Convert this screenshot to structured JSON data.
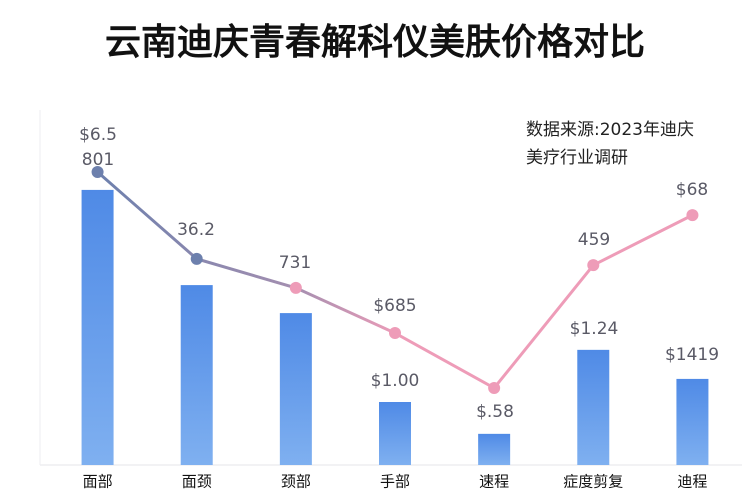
{
  "chart_data": {
    "type": "bar",
    "title": "云南迪庆青春解科仪美肤价格对比",
    "source": [
      "数据来源:2023年迪庆",
      "美疗行业调研"
    ],
    "categories": [
      "面部",
      "面颈",
      "颈部",
      "手部",
      "速程",
      "症度剪复",
      "迪程"
    ],
    "ylim": [
      0,
      100
    ],
    "series": [
      {
        "type": "bar",
        "color": "#5b93e6",
        "values": [
          78.6,
          51.4,
          43.4,
          18,
          8.9,
          32.9,
          24.6
        ]
      },
      {
        "type": "line",
        "color": "#ee9cb8",
        "values": [
          83.7,
          58.9,
          50.6,
          37.7,
          22,
          57.1,
          71.4
        ]
      }
    ],
    "annotations": [
      "$6.5",
      "801",
      "36.2",
      "731",
      "$685",
      "$1.00",
      "$.58",
      "459",
      "$1.24",
      "$68",
      "$1419"
    ]
  }
}
